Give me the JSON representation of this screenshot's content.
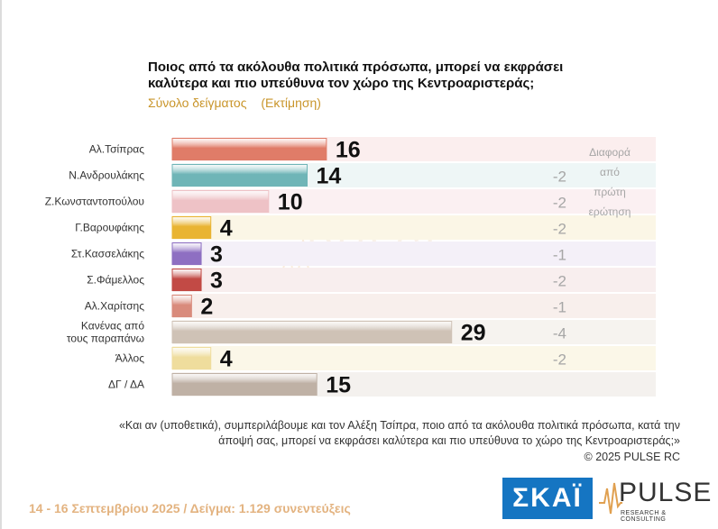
{
  "title": "Ποιος από τα ακόλουθα πολιτικά πρόσωπα, μπορεί να εκφράσει καλύτερα και πιο υπεύθυνα τον χώρο της Κεντροαριστεράς;",
  "subtitle_left": "Σύνολο δείγματος",
  "subtitle_right": "(Εκτίμηση)",
  "diff_header": [
    "Διαφορά",
    "από",
    "πρώτη",
    "ερώτηση"
  ],
  "watermark": {
    "main": "PULSE",
    "sub": "RESEARCH & CONSULTING"
  },
  "footnote": "«Και αν (υποθετικά), συμπεριλάβουμε και τον Αλέξη Τσίπρα, ποιο από τα ακόλουθα πολιτικά πρόσωπα, κατά την άποψή σας, μπορεί να εκφράσει καλύτερα και πιο υπεύθυνα το χώρο της Κεντροαριστεράς;»",
  "copyright": "©  2025  PULSE RC",
  "bottom_info": "14 - 16 Σεπτεμβρίου 2025  /  Δείγμα:  1.129 συνεντεύξεις",
  "logos": {
    "skai": "ΣΚΑΪ",
    "pulse": "PULSE",
    "pulse_sub": "RESEARCH & CONSULTING"
  },
  "chart_data": {
    "type": "bar",
    "orientation": "horizontal",
    "xlim": [
      0,
      35
    ],
    "categories": [
      "Αλ.Τσίπρας",
      "Ν.Ανδρουλάκης",
      "Ζ.Κωνσταντοπούλου",
      "Γ.Βαρουφάκης",
      "Στ.Κασσελάκης",
      "Σ.Φάμελλος",
      "Αλ.Χαρίτσης",
      "Κανένας από τους παραπάνω",
      "Άλλος",
      "ΔΓ / ΔΑ"
    ],
    "values": [
      16,
      14,
      10,
      4,
      3,
      3,
      2,
      29,
      4,
      15
    ],
    "differences": [
      "",
      "-2",
      "-2",
      "-2",
      "-1",
      "-2",
      "-1",
      "-4",
      "-2",
      ""
    ],
    "colors": [
      "#e07c68",
      "#6fb5b7",
      "#eec2c6",
      "#e9b432",
      "#8e6fc2",
      "#c24a45",
      "#d98b7c",
      "#cfc2b6",
      "#efdd9d",
      "#bfb1a5"
    ]
  }
}
